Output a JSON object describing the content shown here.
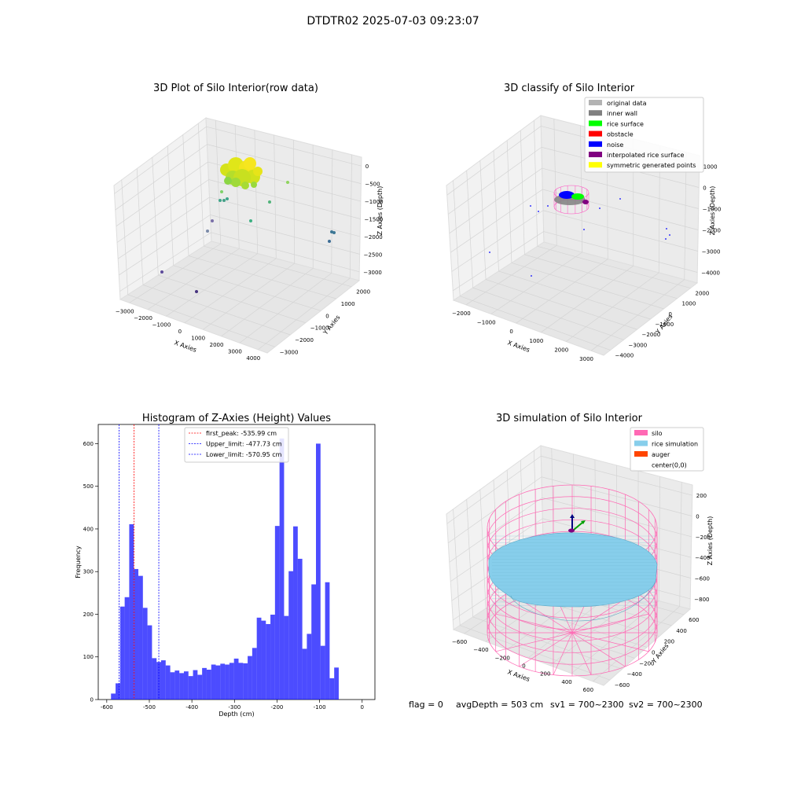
{
  "figure_title": "DTDTR02 2025-07-03 09:23:07",
  "footer": {
    "flag": "flag = 0",
    "avg_depth": "avgDepth = 503 cm",
    "sv1": "sv1 = 700~2300",
    "sv2": "sv2 = 700~2300"
  },
  "colors": {
    "histogram_bar": "#0000ff",
    "first_peak_line": "#ff0000",
    "limit_lines": "#0000ff",
    "original_data": "#b3b3b3",
    "inner_wall": "#808080",
    "rice_surface": "#00ff00",
    "obstacle": "#ff0000",
    "noise": "#0000ff",
    "interpolated_rice_surface": "#800080",
    "symmetric_generated_points": "#ffff00",
    "silo": "#ff69b4",
    "rice_simulation": "#87ceeb",
    "auger": "#ff4500"
  },
  "chart_data": [
    {
      "type": "scatter",
      "title": "3D Plot of Silo Interior(row data)",
      "xlabel": "X Axies",
      "ylabel": "Y Axies",
      "zlabel": "Z Axies (Depth)",
      "x_ticks": [
        "−3000",
        "−2000",
        "−1000",
        "0",
        "1000",
        "2000",
        "3000",
        "4000"
      ],
      "y_ticks": [
        "−3000",
        "−2000",
        "−1000",
        "0",
        "1000",
        "2000"
      ],
      "z_ticks": [
        "0",
        "−500",
        "−1000",
        "−1500",
        "−2000",
        "−2500",
        "−3000"
      ],
      "xlim": [
        -3000,
        4000
      ],
      "ylim": [
        -3000,
        2000
      ],
      "zlim": [
        -3000,
        0
      ]
    },
    {
      "type": "scatter",
      "title": "3D classify of Silo Interior",
      "xlabel": "X Axies",
      "ylabel": "Y Axies",
      "zlabel": "Z Axies (Depth)",
      "x_ticks": [
        "−2000",
        "−1000",
        "0",
        "1000",
        "2000",
        "3000"
      ],
      "y_ticks": [
        "−4000",
        "−3000",
        "−2000",
        "−1000",
        "0",
        "1000",
        "2000"
      ],
      "z_ticks": [
        "1000",
        "0",
        "−1000",
        "−2000",
        "−3000",
        "−4000"
      ],
      "legend": [
        "original data",
        "inner wall",
        "rice surface",
        "obstacle",
        "noise",
        "interpolated rice surface",
        "symmetric generated points"
      ],
      "legend_position": "top-right"
    },
    {
      "type": "bar",
      "title": "Histogram of Z-Axies (Height) Values",
      "xlabel": "Depth (cm)",
      "ylabel": "Frequency",
      "xlim": [
        -620,
        30
      ],
      "ylim": [
        0,
        645
      ],
      "x_ticks": [
        -600,
        -500,
        -400,
        -300,
        -200,
        -100,
        0
      ],
      "y_ticks": [
        0,
        100,
        200,
        300,
        400,
        500,
        600
      ],
      "bin_edges_start": -590,
      "bin_width": 10.7,
      "values": [
        14,
        38,
        218,
        240,
        411,
        306,
        290,
        215,
        174,
        97,
        88,
        92,
        80,
        64,
        68,
        62,
        66,
        55,
        69,
        58,
        74,
        70,
        82,
        80,
        84,
        82,
        86,
        96,
        86,
        85,
        102,
        121,
        192,
        185,
        177,
        199,
        407,
        612,
        196,
        301,
        406,
        330,
        119,
        154,
        270,
        600,
        126,
        275,
        50,
        75
      ],
      "vlines": [
        {
          "label": "first_peak: -535.99 cm",
          "x": -535.99,
          "color": "#ff0000"
        },
        {
          "label": "Upper_limit: -477.73 cm",
          "x": -477.73,
          "color": "#0000ff"
        },
        {
          "label": "Lower_limit: -570.95 cm",
          "x": -570.95,
          "color": "#0000ff"
        }
      ],
      "legend_position": "top-center"
    },
    {
      "type": "surface",
      "title": "3D simulation of Silo Interior",
      "xlabel": "X Axies",
      "ylabel": "Y Axies",
      "zlabel": "Z Axies (Depth)",
      "x_ticks": [
        "−600",
        "−400",
        "−200",
        "0",
        "200",
        "400",
        "600"
      ],
      "y_ticks": [
        "−600",
        "−400",
        "−200",
        "0",
        "200",
        "400",
        "600"
      ],
      "z_ticks": [
        "200",
        "0",
        "−200",
        "−400",
        "−600",
        "−800"
      ],
      "legend": [
        "silo",
        "rice simulation",
        "auger",
        "center(0,0)"
      ],
      "legend_position": "top-right"
    }
  ]
}
